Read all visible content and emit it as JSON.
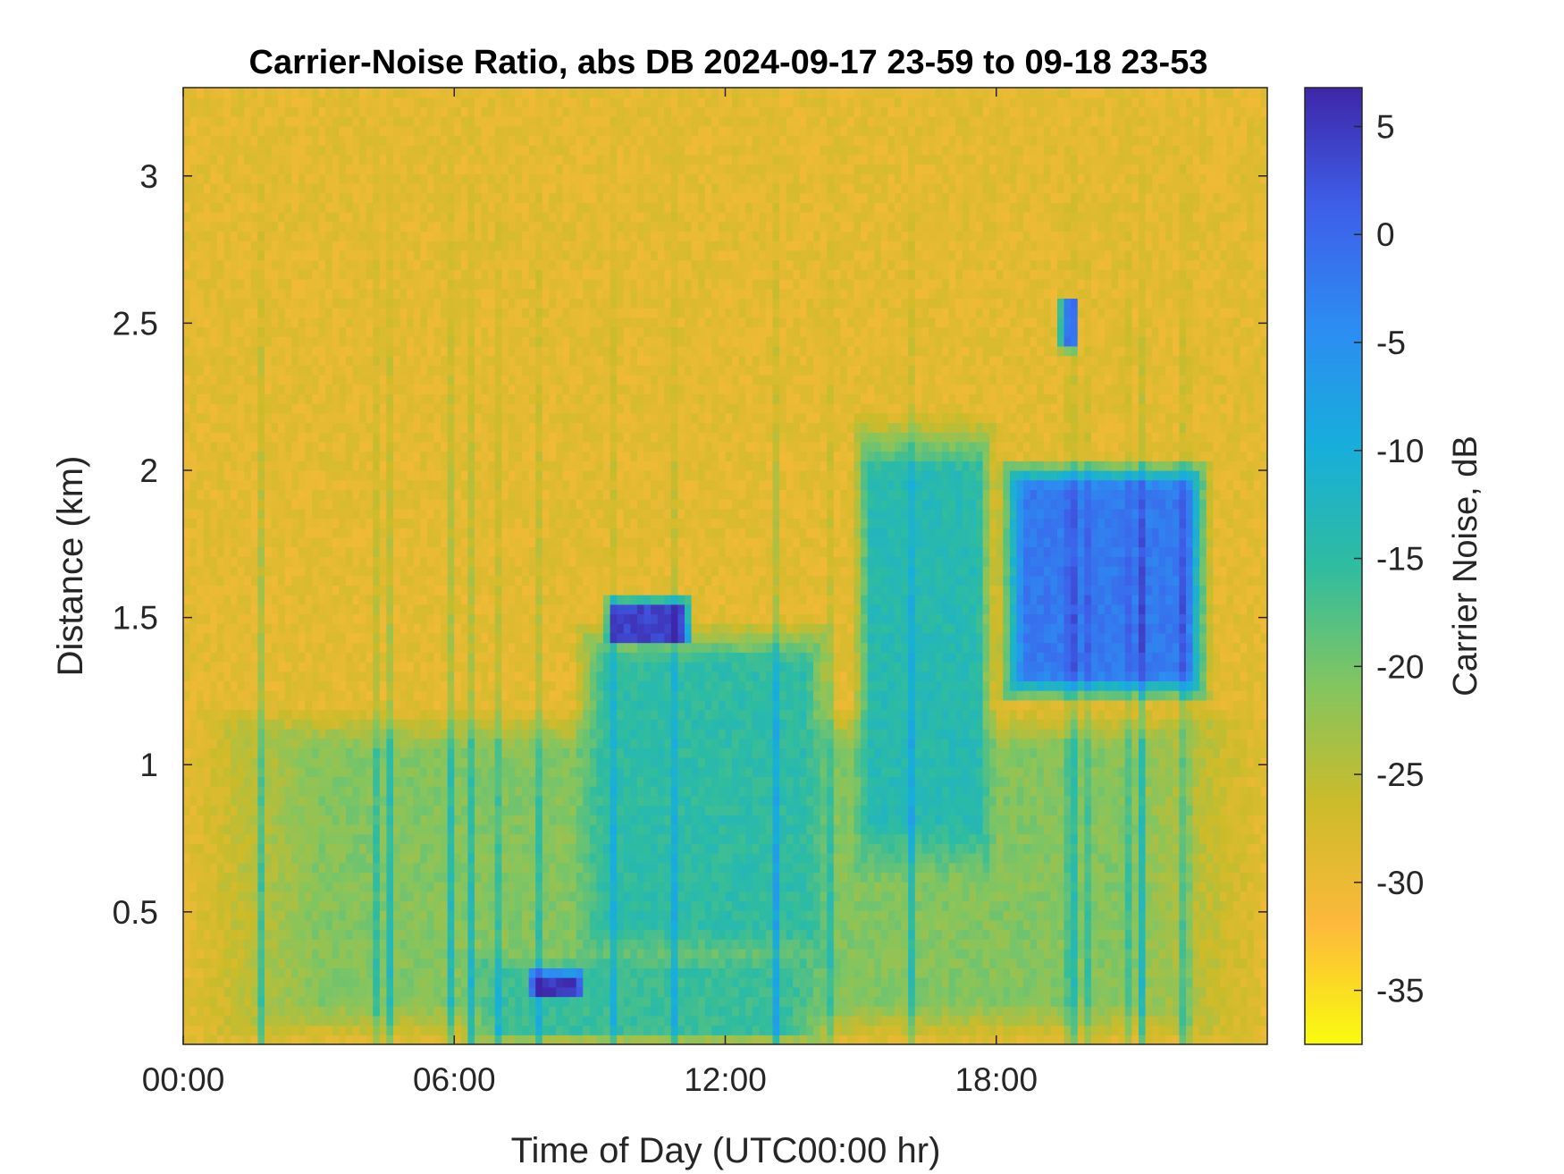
{
  "chart_data": {
    "type": "heatmap",
    "title": "Carrier-Noise Ratio, abs DB 2024-09-17 23-59 to 09-18 23-53",
    "xlabel": "Time of Day (UTC00:00 hr)",
    "ylabel": "Distance (km)",
    "colorbar_label": "Carrier Noise, dB",
    "x_unit": "hours",
    "xlim": [
      0,
      24
    ],
    "ylim": [
      0.05,
      3.3
    ],
    "clim": [
      -37.5,
      6.8
    ],
    "x_ticks": [
      {
        "value": 0,
        "label": "00:00"
      },
      {
        "value": 6,
        "label": "06:00"
      },
      {
        "value": 12,
        "label": "12:00"
      },
      {
        "value": 18,
        "label": "18:00"
      }
    ],
    "y_ticks": [
      {
        "value": 0.5,
        "label": "0.5"
      },
      {
        "value": 1,
        "label": "1"
      },
      {
        "value": 1.5,
        "label": "1.5"
      },
      {
        "value": 2,
        "label": "2"
      },
      {
        "value": 2.5,
        "label": "2.5"
      },
      {
        "value": 3,
        "label": "3"
      }
    ],
    "colorbar_ticks": [
      {
        "value": 5,
        "label": "5"
      },
      {
        "value": 0,
        "label": "0"
      },
      {
        "value": -5,
        "label": "-5"
      },
      {
        "value": -10,
        "label": "-10"
      },
      {
        "value": -15,
        "label": "-15"
      },
      {
        "value": -20,
        "label": "-20"
      },
      {
        "value": -25,
        "label": "-25"
      },
      {
        "value": -30,
        "label": "-30"
      },
      {
        "value": -35,
        "label": "-35"
      }
    ],
    "colormap": "parula (reversed)",
    "colormap_stops": [
      "#f9fb0e",
      "#fdb93b",
      "#cdbb2a",
      "#83c560",
      "#2fbca0",
      "#17aedb",
      "#2d8cf2",
      "#3e5fe9",
      "#3e26a8"
    ],
    "grid": false,
    "background_level_db": -29,
    "features": [
      {
        "description": "Aerosol boundary layer, low levels",
        "time_range": [
          0,
          24
        ],
        "distance_range": [
          0.05,
          1.2
        ],
        "level_db": -21
      },
      {
        "description": "Near-surface layer",
        "time_range": [
          6,
          14.5
        ],
        "distance_range": [
          0.05,
          0.35
        ],
        "level_db": -16
      },
      {
        "description": "Daytime mixed layer dome",
        "time_range": [
          8.6,
          14.5
        ],
        "distance_range": [
          0.3,
          1.5
        ],
        "level_db": -15
      },
      {
        "description": "Mixed layer top (strong return)",
        "time_range": [
          9.3,
          11.3
        ],
        "distance_range": [
          1.4,
          1.57
        ],
        "level_db": 4
      },
      {
        "description": "Afternoon convective plumes",
        "time_range": [
          14.8,
          18.0
        ],
        "distance_range": [
          0.6,
          2.2
        ],
        "level_db": -14
      },
      {
        "description": "Evening elevated cloud layer",
        "time_range": [
          18.0,
          22.8
        ],
        "distance_range": [
          1.2,
          2.05
        ],
        "level_db": -2
      },
      {
        "description": "Isolated cloud return",
        "time_range": [
          19.4,
          19.8
        ],
        "distance_range": [
          2.4,
          2.6
        ],
        "level_db": -3
      },
      {
        "description": "Low strong return near surface",
        "time_range": [
          7.6,
          8.9
        ],
        "distance_range": [
          0.2,
          0.3
        ],
        "level_db": 5
      }
    ]
  }
}
